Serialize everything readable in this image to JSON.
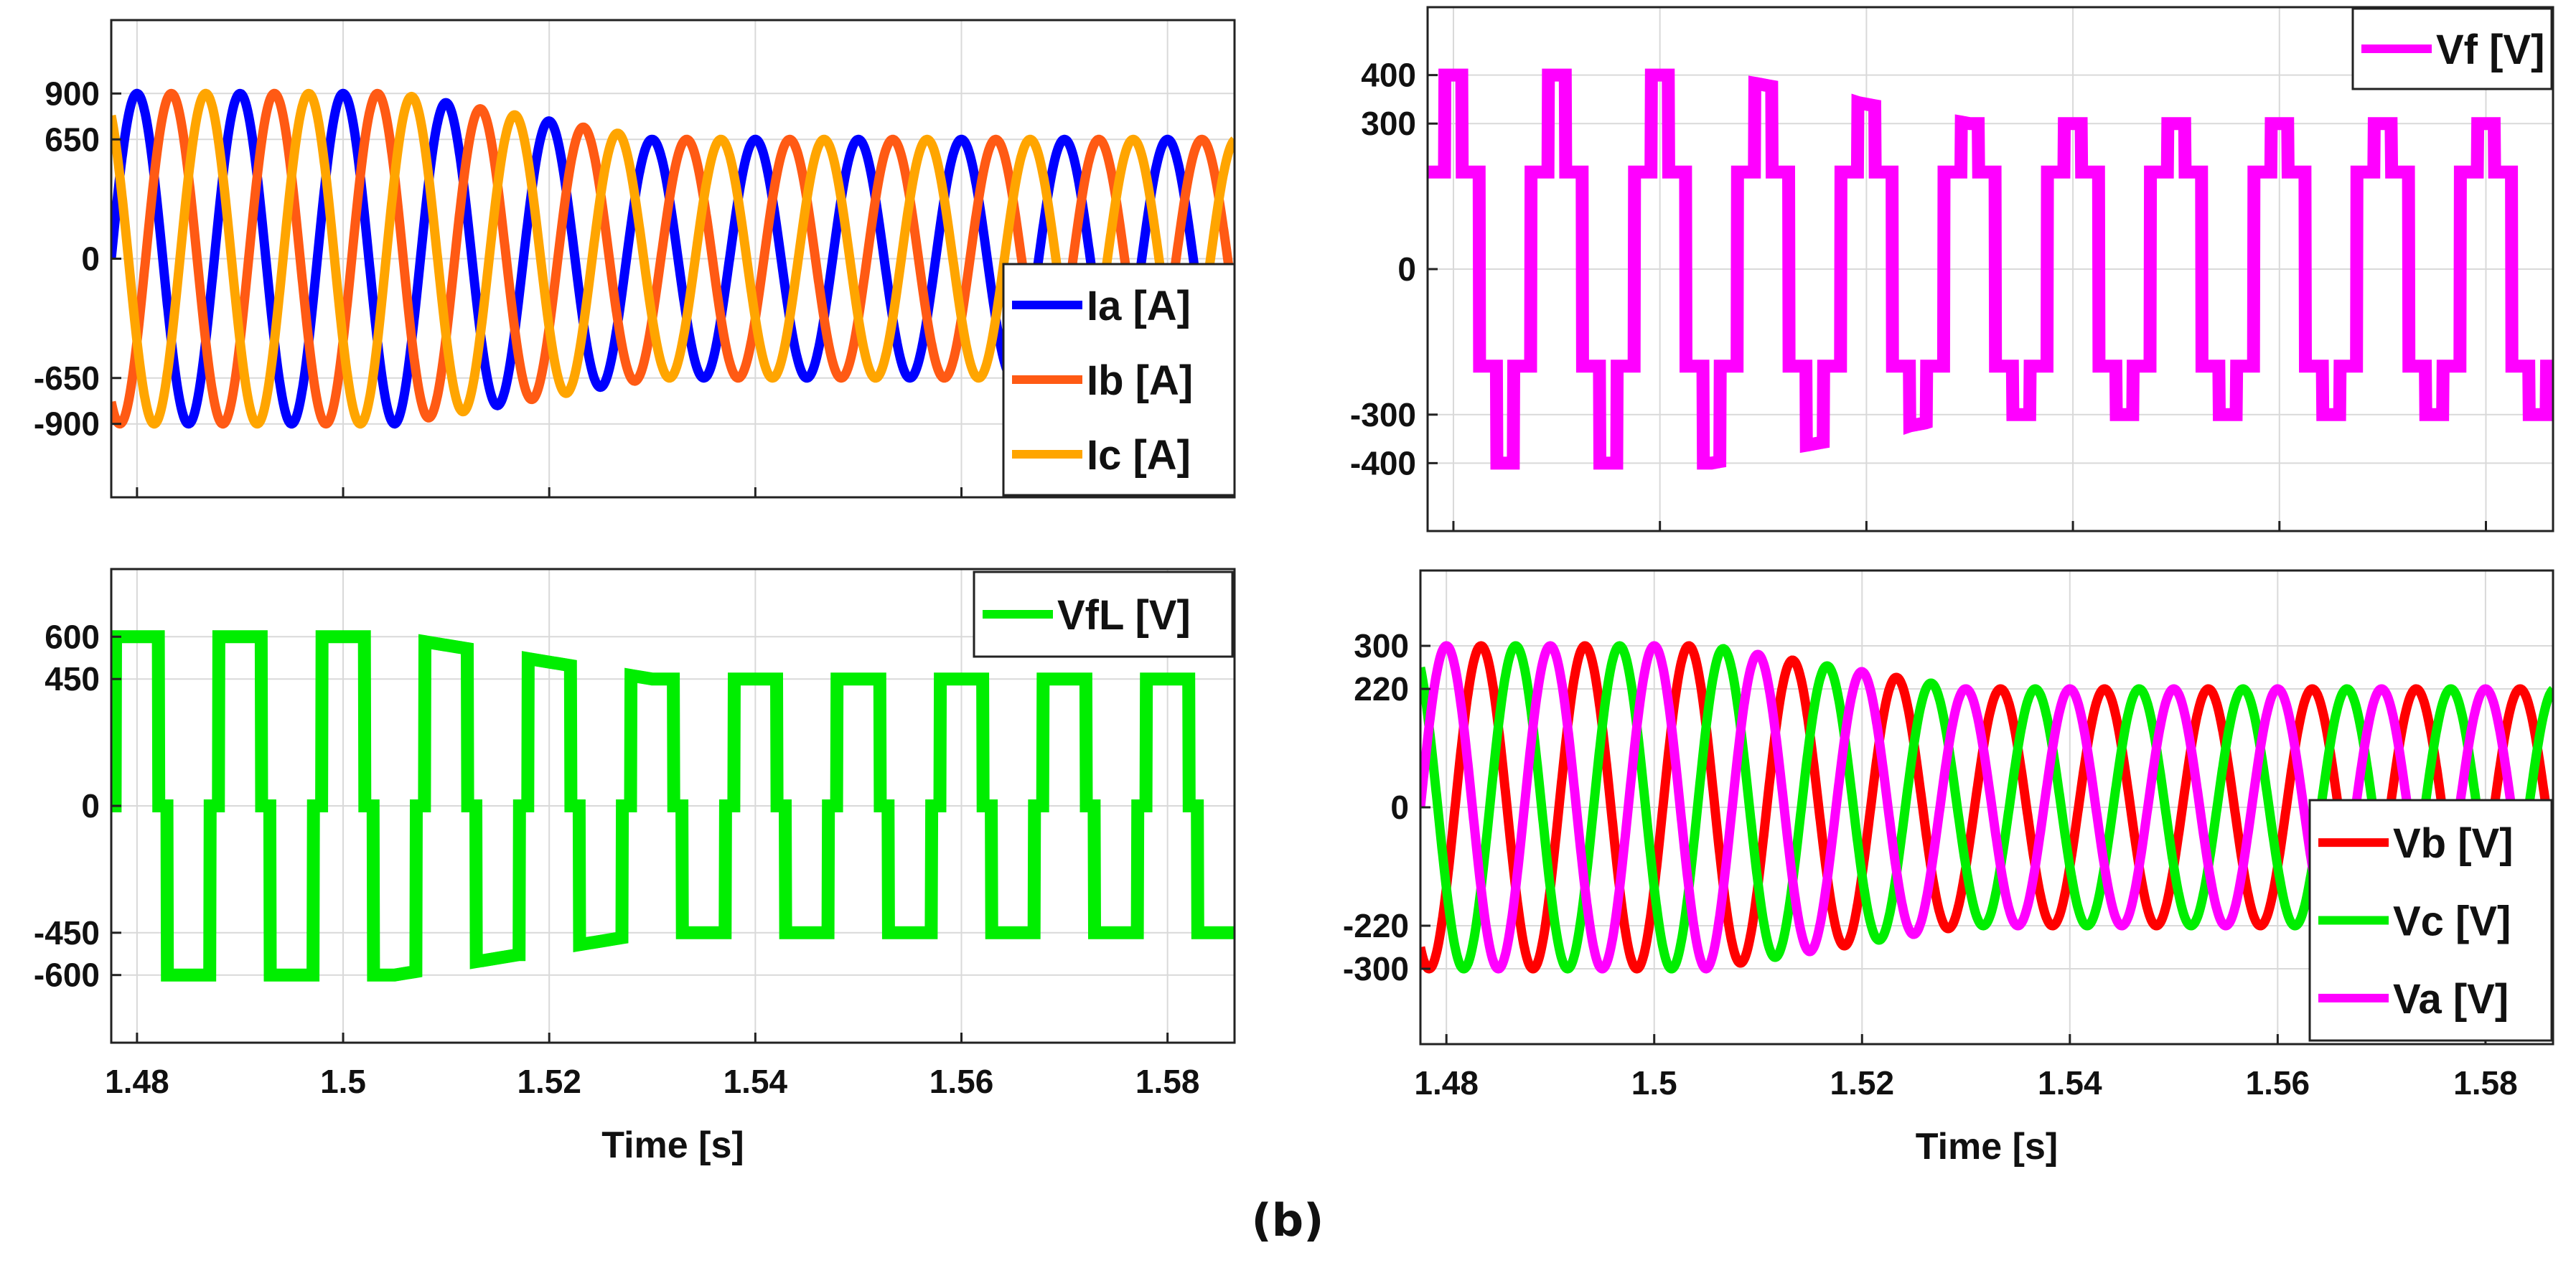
{
  "figure": {
    "caption": "(b)"
  },
  "chart_data": [
    {
      "id": "currents",
      "type": "line",
      "title": "",
      "xlabel": "",
      "ylabel": "",
      "xlim": [
        1.4775,
        1.5865
      ],
      "ylim": [
        -1300,
        1300
      ],
      "xticks": [
        1.48,
        1.5,
        1.52,
        1.54,
        1.56,
        1.58
      ],
      "xtick_labels": [],
      "yticks": [
        900,
        650,
        0,
        -650,
        -900
      ],
      "ytick_labels": [
        "900",
        "650",
        "0",
        "-650",
        "-900"
      ],
      "grid": true,
      "legend_position": "bottom-right",
      "waveform": "sine",
      "frequency_hz": 100,
      "amplitude_before": 900,
      "amplitude_after": 650,
      "transition_s": [
        1.505,
        1.53
      ],
      "series": [
        {
          "name": "Ia [A]",
          "color": "#0000ff",
          "phase_deg": 0
        },
        {
          "name": "Ib [A]",
          "color": "#ff5a14",
          "phase_deg": -120
        },
        {
          "name": "Ic [A]",
          "color": "#ffa500",
          "phase_deg": 120
        }
      ]
    },
    {
      "id": "vf",
      "type": "line",
      "title": "",
      "xlabel": "",
      "ylabel": "",
      "xlim": [
        1.4775,
        1.5865
      ],
      "ylim": [
        -540,
        540
      ],
      "xticks": [
        1.48,
        1.5,
        1.52,
        1.54,
        1.56,
        1.58
      ],
      "xtick_labels": [],
      "yticks": [
        400,
        300,
        0,
        -300,
        -400
      ],
      "ytick_labels": [
        "400",
        "300",
        "0",
        "-300",
        "-400"
      ],
      "grid": true,
      "legend_position": "top-right",
      "waveform": "stepped",
      "frequency_hz": 100,
      "level_high": 200,
      "amplitude_before": 400,
      "amplitude_after": 300,
      "transition_s": [
        1.505,
        1.53
      ],
      "series": [
        {
          "name": "Vf [V]",
          "color": "#ff00ff",
          "phase_deg": 0
        }
      ]
    },
    {
      "id": "vfl",
      "type": "line",
      "title": "",
      "xlabel": "Time [s]",
      "ylabel": "",
      "xlim": [
        1.4775,
        1.5865
      ],
      "ylim": [
        -840,
        840
      ],
      "xticks": [
        1.48,
        1.5,
        1.52,
        1.54,
        1.56,
        1.58
      ],
      "xtick_labels": [
        "1.48",
        "1.5",
        "1.52",
        "1.54",
        "1.56",
        "1.58"
      ],
      "yticks": [
        600,
        450,
        0,
        -450,
        -600
      ],
      "ytick_labels": [
        "600",
        "450",
        "0",
        "-450",
        "-600"
      ],
      "grid": true,
      "legend_position": "top-right",
      "waveform": "quasi-square",
      "frequency_hz": 100,
      "amplitude_before": 600,
      "amplitude_after": 450,
      "transition_s": [
        1.505,
        1.53
      ],
      "series": [
        {
          "name": "VfL [V]",
          "color": "#00ee00",
          "phase_deg": 0
        }
      ]
    },
    {
      "id": "voltages",
      "type": "line",
      "title": "",
      "xlabel": "Time [s]",
      "ylabel": "",
      "xlim": [
        1.4775,
        1.5865
      ],
      "ylim": [
        -440,
        440
      ],
      "xticks": [
        1.48,
        1.5,
        1.52,
        1.54,
        1.56,
        1.58
      ],
      "xtick_labels": [
        "1.48",
        "1.5",
        "1.52",
        "1.54",
        "1.56",
        "1.58"
      ],
      "yticks": [
        300,
        220,
        0,
        -220,
        -300
      ],
      "ytick_labels": [
        "300",
        "220",
        "0",
        "-220",
        "-300"
      ],
      "grid": true,
      "legend_position": "bottom-right",
      "waveform": "sine",
      "frequency_hz": 100,
      "amplitude_before": 300,
      "amplitude_after": 220,
      "transition_s": [
        1.505,
        1.53
      ],
      "series": [
        {
          "name": "Vb [V]",
          "color": "#ff0000",
          "phase_deg": -120
        },
        {
          "name": "Vc [V]",
          "color": "#00ee00",
          "phase_deg": 120
        },
        {
          "name": "Va [V]",
          "color": "#ff00ff",
          "phase_deg": 0
        }
      ]
    }
  ]
}
